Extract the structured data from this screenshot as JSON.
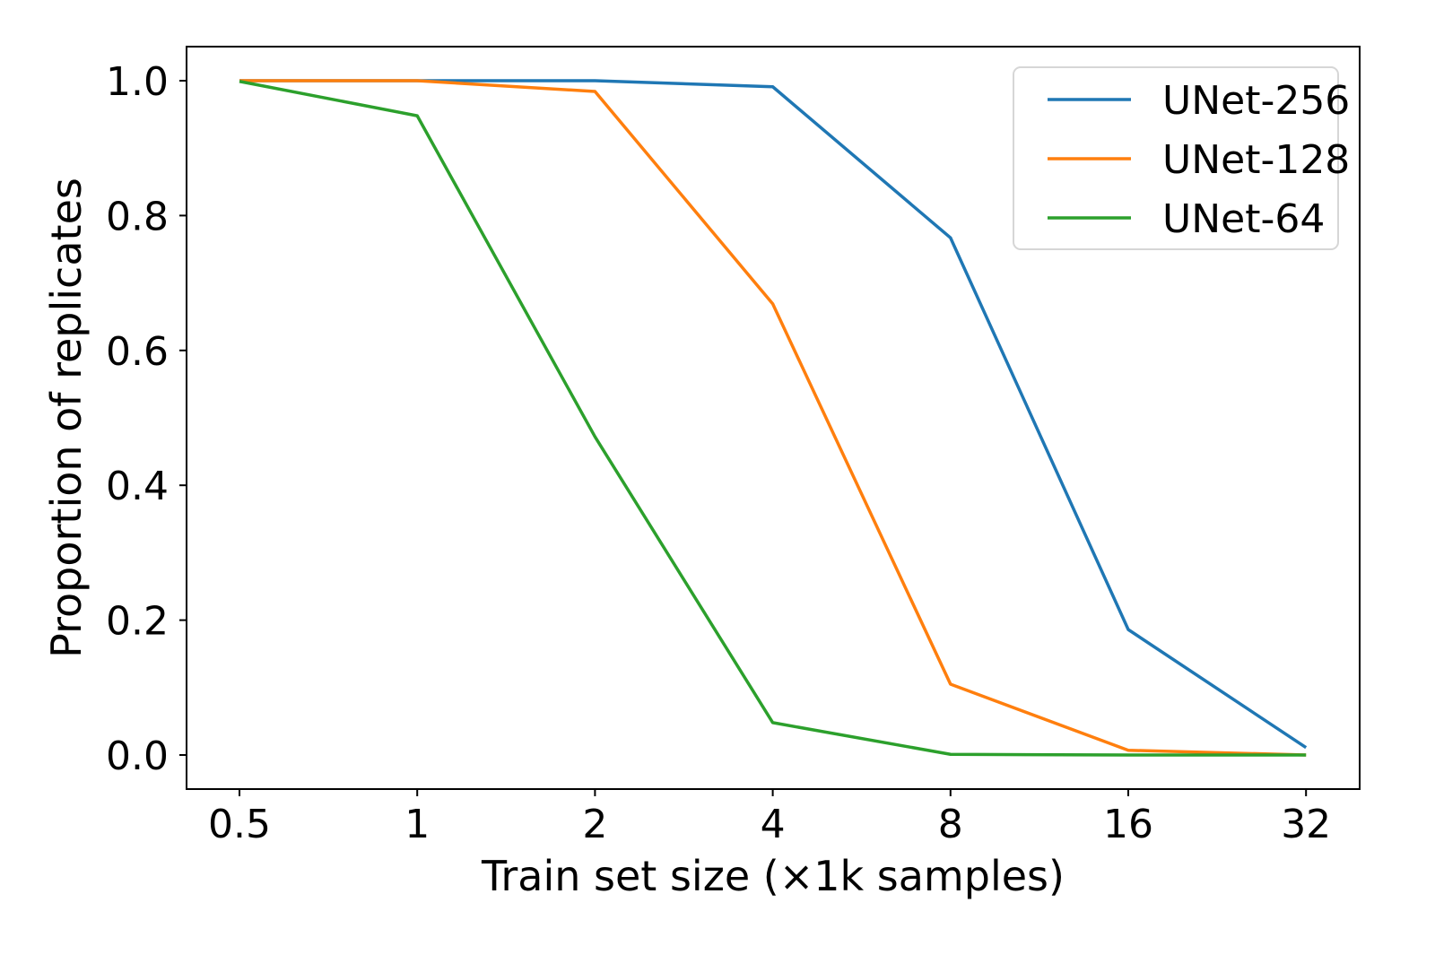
{
  "chart_data": {
    "type": "line",
    "title": "",
    "xlabel": "Train set size (×1k samples)",
    "ylabel": "Proportion of replicates",
    "x": [
      "0.5",
      "1",
      "2",
      "4",
      "8",
      "16",
      "32"
    ],
    "x_scale": "log2",
    "ylim": [
      -0.05,
      1.05
    ],
    "yticks": [
      "0.0",
      "0.2",
      "0.4",
      "0.6",
      "0.8",
      "1.0"
    ],
    "grid": false,
    "legend_position": "upper right",
    "series": [
      {
        "name": "UNet-256",
        "color": "#1f77b4",
        "values": [
          1.0,
          1.0,
          1.0,
          0.991,
          0.767,
          0.186,
          0.011
        ]
      },
      {
        "name": "UNet-128",
        "color": "#ff7f0e",
        "values": [
          1.0,
          1.0,
          0.984,
          0.669,
          0.105,
          0.007,
          0.0
        ]
      },
      {
        "name": "UNet-64",
        "color": "#2ca02c",
        "values": [
          0.999,
          0.948,
          0.472,
          0.048,
          0.001,
          0.0,
          0.0
        ]
      }
    ]
  }
}
